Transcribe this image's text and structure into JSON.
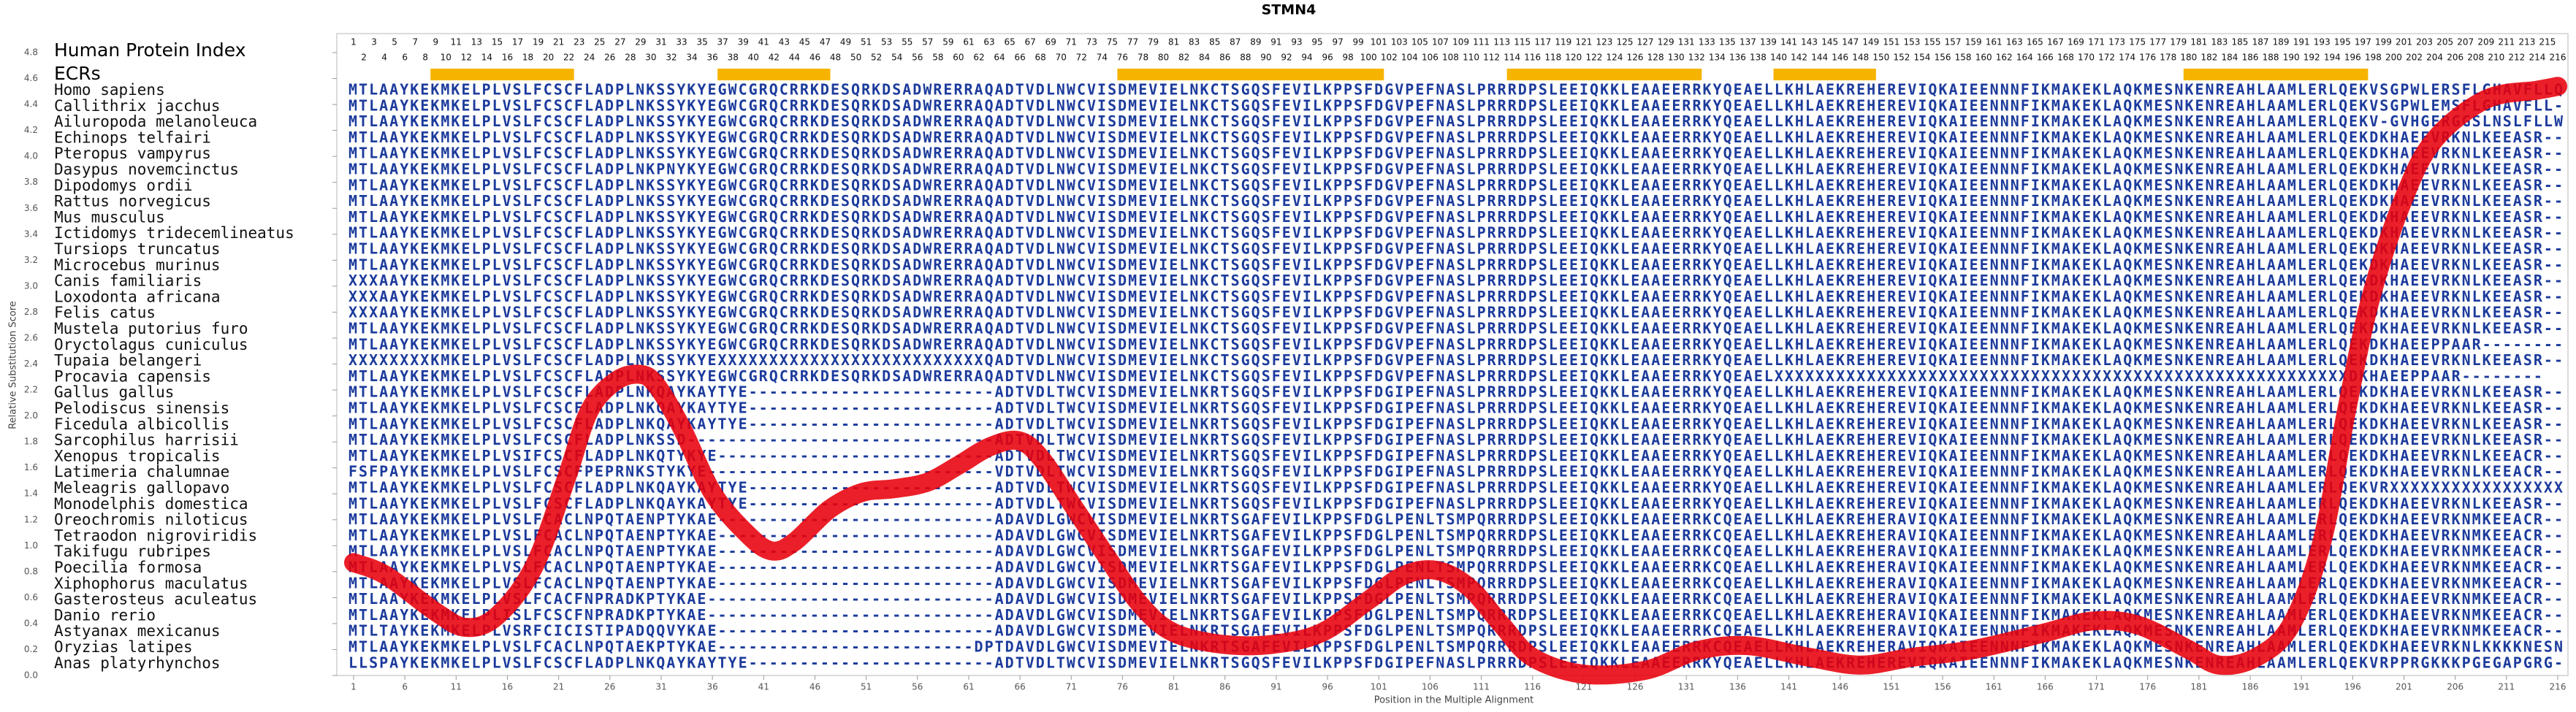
{
  "chart_data": {
    "type": "line",
    "title": "STMN4",
    "xlabel": "Position in the Multiple Alignment",
    "ylabel": "Relative Substitution Score",
    "color": "#e8000b",
    "sequence_color": "#1c3b9c",
    "ecr_color": "#f6b400",
    "xlim": [
      1,
      216
    ],
    "ylim": [
      0,
      4.8
    ],
    "xticks": [
      1,
      6,
      11,
      16,
      21,
      26,
      31,
      36,
      41,
      46,
      51,
      56,
      61,
      66,
      71,
      76,
      81,
      86,
      91,
      96,
      101,
      106,
      111,
      116,
      121,
      126,
      131,
      136,
      141,
      146,
      151,
      156,
      161,
      166,
      171,
      176,
      181,
      186,
      191,
      196,
      201,
      206,
      211,
      216
    ],
    "yticks": [
      {
        "value": 0,
        "label": "0.0"
      },
      0.2,
      0.4,
      0.6,
      0.8,
      {
        "value": 1,
        "label": "1.0"
      },
      1.2,
      1.4,
      1.6,
      1.8,
      {
        "value": 2,
        "label": "2.0"
      },
      2.2,
      2.4,
      2.6,
      2.8,
      {
        "value": 3,
        "label": "3.0"
      },
      3.2,
      3.4,
      3.6,
      3.8,
      {
        "value": 4,
        "label": "4.0"
      },
      4.2,
      4.4,
      4.6,
      4.8
    ],
    "x": [
      1,
      4.2,
      9,
      12,
      15,
      18.6,
      21.8,
      24,
      26.6,
      29,
      30.6,
      33,
      36,
      39.4,
      41.8,
      44,
      47.4,
      50.6,
      53.8,
      57,
      60,
      63,
      65.8,
      68,
      71.4,
      74.6,
      77.8,
      81,
      85.8,
      90.6,
      95.4,
      100,
      103.4,
      106.6,
      109.8,
      113,
      116,
      121,
      127,
      132,
      137,
      143,
      148,
      153,
      159,
      166,
      170.6,
      175,
      180,
      183,
      186.6,
      190,
      193,
      195.4,
      197.8,
      201,
      204,
      209,
      214,
      216
    ],
    "values": [
      0.87,
      0.77,
      0.49,
      0.37,
      0.46,
      0.84,
      1.53,
      2.04,
      2.27,
      2.32,
      2.23,
      1.91,
      1.41,
      1.09,
      0.96,
      1.03,
      1.28,
      1.41,
      1.44,
      1.49,
      1.62,
      1.76,
      1.81,
      1.68,
      1.28,
      0.9,
      0.54,
      0.33,
      0.24,
      0.24,
      0.33,
      0.58,
      0.77,
      0.81,
      0.68,
      0.39,
      0.14,
      0.01,
      0.04,
      0.19,
      0.23,
      0.14,
      0.08,
      0.14,
      0.2,
      0.33,
      0.42,
      0.39,
      0.2,
      0.08,
      0.14,
      0.39,
      1.03,
      2.04,
      2.92,
      3.68,
      4.13,
      4.44,
      4.51,
      4.54
    ],
    "index_label": "Human Protein Index",
    "human_index": [
      1,
      2,
      3,
      4,
      5,
      6,
      7,
      8,
      9,
      10,
      11,
      12,
      13,
      14,
      15,
      16,
      17,
      18,
      19,
      20,
      21,
      22,
      23,
      24,
      25,
      26,
      27,
      28,
      29,
      30,
      31,
      32,
      33,
      34,
      35,
      36,
      37,
      38,
      39,
      40,
      41,
      42,
      43,
      44,
      45,
      46,
      47,
      48,
      49,
      50,
      51,
      52,
      53,
      54,
      55,
      56,
      57,
      58,
      59,
      60,
      61,
      62,
      63,
      64,
      65,
      66,
      67,
      68,
      69,
      70,
      71,
      72,
      73,
      74,
      75,
      76,
      77,
      78,
      79,
      80,
      81,
      82,
      83,
      84,
      85,
      86,
      87,
      88,
      89,
      90,
      91,
      92,
      93,
      94,
      95,
      96,
      97,
      98,
      99,
      100,
      101,
      102,
      103,
      104,
      105,
      106,
      107,
      108,
      109,
      110,
      111,
      112,
      113,
      114,
      115,
      116,
      117,
      118,
      119,
      120,
      121,
      122,
      123,
      124,
      125,
      126,
      127,
      128,
      129,
      130,
      131,
      132,
      133,
      134,
      135,
      136,
      137,
      138,
      139,
      140,
      141,
      142,
      143,
      144,
      145,
      146,
      147,
      148,
      149,
      150,
      151,
      152,
      153,
      154,
      155,
      156,
      157,
      158,
      159,
      160,
      161,
      162,
      163,
      164,
      165,
      166,
      167,
      168,
      169,
      170,
      171,
      172,
      173,
      174,
      175,
      176,
      177,
      178,
      179,
      180,
      181,
      182,
      183,
      184,
      185,
      186,
      187,
      188,
      189,
      190,
      191,
      192,
      193,
      194,
      195,
      196,
      197,
      198,
      199,
      200,
      201,
      202,
      203,
      204,
      205,
      206,
      207,
      208,
      209,
      210,
      211,
      212,
      213,
      214,
      215,
      216
    ],
    "ecr_label": "ECRs",
    "ecrs": [
      [
        9,
        22
      ],
      [
        37,
        47
      ],
      [
        76,
        101
      ],
      [
        114,
        132
      ],
      [
        140,
        149
      ],
      [
        180,
        197
      ]
    ],
    "alignment": [
      {
        "name": "Homo sapiens",
        "sequence": "MTLAAYKEKMKELPLVSLFCSCFLADPLNKSSYKYEGWCGRQCRRKDESQRKDSADWRERRAQADTVDLNWCVISDMEVIELNKCTSGQSFEVILKPPSFDGVPEFNASLPRRRDPSLEEIQKKLEAAEERRKYQEAELLKHLAEKREHEREVIQKAIEENNNFIKMAKEKLAQKMESNKENREAHLAAMLERLQEKVSGPWLERSFLGHAVFLLQ"
      },
      {
        "name": "Callithrix jacchus",
        "sequence": "MTLAAYKEKMKELPLVSLFCSCFLADPLNKSSYKYEGWCGRQCRRKDESQRKDSADWRERRAQADTVDLNWCVISDMEVIELNKCTSGQSFEVILKPPSFDGVPEFNASLPRRRDPSLEEIQKKLEAAEERRKYQEAELLKHLAEKREHEREVIQKAIEENNNFIKMAKEKLAQKMESNKENREAHLAAMLERLQEKVSGPWLEMSFLGHAVFLL-"
      },
      {
        "name": "Ailuropoda melanoleuca",
        "sequence": "MTLAAYKEKMKELPLVSLFCSCFLADPLNKSSYKYEGWCGRQCRRKDESQRKDSADWRERRAQADTVDLNWCVISDMEVIELNKCTSGQSFEVILKPPSFDGVPEFNASLPRRRDPSLEEIQKKLEAAEERRKYQEAELLKHLAEKREHEREVIQKAIEENNNFIKMAKEKLAQKMESNKENREAHLAAMLERLQEKV-GVHGERGGSLNSLFLLW"
      },
      {
        "name": "Echinops telfairi",
        "sequence": "MTLAAYKEKMKELPLVSLFCSCFLADPLNKSSYKYEGWCGRQCRRKDESQRKDSADWRERRAQADTVDLNWCVISDMEVIELNKCTSGQSFEVILKPPSFDGVPEFNASLPRRRDPSLEEIQKKLEAAEERRKYQEAELLKHLAEKREHEREVIQKAIEENNNFIKMAKEKLAQKMESNKENREAHLAAMLERLQEKDKHAEEVRKNLKEEASR--"
      },
      {
        "name": "Pteropus vampyrus",
        "sequence": "MTLAAYKEKMKELPLVSLFCSCFLADPLNKSSYKYEGWCGRQCRRKDESQRKDSADWRERRAQADTVDLNWCVISDMEVIELNKCTSGQSFEVILKPPSFDGVPEFNASLPRRRDPSLEEIQKKLEAAEERRKYQEAELLKHLAEKREHEREVIQKAIEENNNFIKMAKEKLAQKMESNKENREAHLAAMLERLQEKDKHAEEVRKNLKEEASR--"
      },
      {
        "name": "Dasypus novemcinctus",
        "sequence": "MTLAAYKEKMKELPLVSLFCSCFLADPLNKPNYKYEGWCGRQCRRKDESQRKDSADWRERRAQADTVDLNWCVISDMEVIELNKCTSGQSFEVILKPPSFDGVPEFNASLPRRRDPSLEEIQKKLEAAEERRKYQEAELLKHLAEKREHEREVIQKAIEENNNFIKMAKEKLAQKMESNKENREAHLAAMLERLQEKDKHAEEVRKNLKEEASR--"
      },
      {
        "name": "Dipodomys ordii",
        "sequence": "MTLAAYKEKMKELPLVSLFCSCFLADPLNKSSYKYEGWCGRQCRRKDESQRKDSADWRERRAQADTVDLNWCVISDMEVIELNKCTSGQSFEVILKPPSFDGVPEFNASLPRRRDPSLEEIQKKLEAAEERRKYQEAELLKHLAEKREHEREVIQKAIEENNNFIKMAKEKLAQKMESNKENREAHLAAMLERLQEKDKHAEEVRKNLKEEASR--"
      },
      {
        "name": "Rattus norvegicus",
        "sequence": "MTLAAYKEKMKELPLVSLFCSCFLADPLNKSSYKYEGWCGRQCRRKDESQRKDSADWRERRAQADTVDLNWCVISDMEVIELNKCTSGQSFEVILKPPSFDGVPEFNASLPRRRDPSLEEIQKKLEAAEERRKYQEAELLKHLAEKREHEREVIQKAIEENNNFIKMAKEKLAQKMESNKENREAHLAAMLERLQEKDKHAEEVRKNLKEEASR--"
      },
      {
        "name": "Mus musculus",
        "sequence": "MTLAAYKEKMKELPLVSLFCSCFLADPLNKSSYKYEGWCGRQCRRKDESQRKDSADWRERRAQADTVDLNWCVISDMEVIELNKCTSGQSFEVILKPPSFDGVPEFNASLPRRRDPSLEEIQKKLEAAEERRKYQEAELLKHLAEKREHEREVIQKAIEENNNFIKMAKEKLAQKMESNKENREAHLAAMLERLQEKDKHAEEVRKNLKEEASR--"
      },
      {
        "name": "Ictidomys tridecemlineatus",
        "sequence": "MTLAAYKEKMKELPLVSLFCSCFLADPLNKSSYKYEGWCGRQCRRKDESQRKDSADWRERRAQADTVDLNWCVISDMEVIELNKCTSGQSFEVILKPPSFDGVPEFNASLPRRRDPSLEEIQKKLEAAEERRKYQEAELLKHLAEKREHEREVIQKAIEENNNFIKMAKEKLAQKMESNKENREAHLAAMLERLQEKDKHAEEVRKNLKEEASR--"
      },
      {
        "name": "Tursiops truncatus",
        "sequence": "MTLAAYKEKMKELPLVSLFCSCFLADPLNKSSYKYEGWCGRQCRRKDESQRKDSADWRERRAQADTVDLNWCVISDMEVIELNKCTSGQSFEVILKPPSFDGVPEFNASLPRRRDPSLEEIQKKLEAAEERRKYQEAELLKHLAEKREHEREVIQKAIEENNNFIKMAKEKLAQKMESNKENREAHLAAMLERLQEKDKHAEEVRKNLKEEASR--"
      },
      {
        "name": "Microcebus murinus",
        "sequence": "MTLAAYKEKMKELPLVSLFCSCFLADPLNKSSYKYEGWCGRQCRRKDESQRKDSADWRERRAQADTVDLNWCVISDMEVIELNKCTSGQSFEVILKPPSFDGVPEFNASLPRRRDPSLEEIQKKLEAAEERRKYQEAELLKHLAEKREHEREVIQKAIEENNNFIKMAKEKLAQKMESNKENREAHLAAMLERLQEKDKHAEEVRKNLKEEASR--"
      },
      {
        "name": "Canis familiaris",
        "sequence": "XXXAAYKEKMKELPLVSLFCSCFLADPLNKSSYKYEGWCGRQCRRKDESQRKDSADWRERRAQADTVDLNWCVISDMEVIELNKCTSGQSFEVILKPPSFDGVPEFNASLPRRRDPSLEEIQKKLEAAEERRKYQEAELLKHLAEKREHEREVIQKAIEENNNFIKMAKEKLAQKMESNKENREAHLAAMLERLQEKDKHAEEVRKNLKEEASR--"
      },
      {
        "name": "Loxodonta africana",
        "sequence": "XXXAAYKEKMKELPLVSLFCSCFLADPLNKSSYKYEGWCGRQCRRKDESQRKDSADWRERRAQADTVDLNWCVISDMEVIELNKCTSGQSFEVILKPPSFDGVPEFNASLPRRRDPSLEEIQKKLEAAEERRKYQEAELLKHLAEKREHEREVIQKAIEENNNFIKMAKEKLAQKMESNKENREAHLAAMLERLQEKDKHAEEVRKNLKEEASR--"
      },
      {
        "name": "Felis catus",
        "sequence": "XXXAAYKEKMKELPLVSLFCSCFLADPLNKSSYKYEGWCGRQCRRKDESQRKDSADWRERRAQADTVDLNWCVISDMEVIELNKCTSGQSFEVILKPPSFDGVPEFNASLPRRRDPSLEEIQKKLEAAEERRKYQEAELLKHLAEKREHEREVIQKAIEENNNFIKMAKEKLAQKMESNKENREAHLAAMLERLQEKDKHAEEVRKNLKEEASR--"
      },
      {
        "name": "Mustela putorius furo",
        "sequence": "MTLAAYKEKMKELPLVSLFCSCFLADPLNKSSYKYEGWCGRQCRRKDESQRKDSADWRERRAQADTVDLNWCVISDMEVIELNKCTSGQSFEVILKPPSFDGVPEFNASLPRRRDPSLEEIQKKLEAAEERRKYQEAELLKHLAEKREHEREVIQKAIEENNNFIKMAKEKLAQKMESNKENREAHLAAMLERLQEKDKHAEEVRKNLKEEASR--"
      },
      {
        "name": "Oryctolagus cuniculus",
        "sequence": "MTLAAYKEKMKELPLVSLFCSCFLADPLNKSSYKYEGWCGRQCRRKDESQRKDSADWRERRAQADTVDLNWCVISDMEVIELNKCTSGQSFEVILKPPSFDGVPEFNASLPRRRDPSLEEIQKKLEAAEERRKYQEAELLKHLAEKREHEREVIQKAIEENNNFIKMAKEKLAQKMESNKENREAHLAAMLERLQEKDKHAEEPPAAR--------"
      },
      {
        "name": "Tupaia belangeri",
        "sequence": "XXXXXXXXKMKELPLVSLFCSCFLADPLNKSSYKYEXXXXXXXXXXXXXXXXXXXXXXXXXXQADTVDLNWCVISDMEVIELNKCTSGQSFEVILKPPSFDGVPEFNASLPRRRDPSLEEIQKKLEAAEERRKYQEAELLKHLAEKREHEREVIQKAIEENNNFIKMAKEKLAQKMESNKENREAHLAAMLERLQEKDKHAEEVRKNLKEEASR--"
      },
      {
        "name": "Procavia capensis",
        "sequence": "MTLAAYKEKMKELPLVSLFCSCFLADPLNKSSYKYEGWCGRQCRRKDESQRKDSADWRERRAQADTVDLNWCVISDMEVIELNKCTSGQSFEVILKPPSFDGVPEFNASLPRRRDPSLEEIQKKLEAAEERRKYQEAELXXXXXXXXXXXXXXXXXXXXXXXXXXXXXXXXXXXXXXXXXXXXXXXXXXXXXXXXDKHAEEPPAAR--------"
      },
      {
        "name": "Gallus gallus",
        "sequence": "MTLAAYKEKMKELPLVSLFCSCFLADPLNKQAYKAYTYE------------------------ADTVDLTWCVISDMEVIELNKRTSGQSFEVILKPPSFDGIPEFNASLPRRRDPSLEEIQKKLEAAEERRKYQEAELLKHLAEKREHEREVIQKAIEENNNFIKMAKEKLAQKMESNKENREAHLAAMLERLQEKDKHAEEVRKNLKEEASR--"
      },
      {
        "name": "Pelodiscus sinensis",
        "sequence": "MTLAAYKEKMKELPLVSLFCSCFLADPLNKQAYKAYTYE------------------------ADTVDLTWCVISDMEVIELNKRTSGQSFEVILKPPSFDGIPEFNASLPRRRDPSLEEIQKKLEAAEERRKYQEAELLKHLAEKREHEREVIQKAIEENNNFIKMAKEKLAQKMESNKENREAHLAAMLERLQEKDKHAEEVRKNLKEEASR--"
      },
      {
        "name": "Ficedula albicollis",
        "sequence": "MTLAAYKEKMKELPLVSLFCSCFLADPLNKQAYKAYTYE------------------------ADTVDLTWCVISDMEVIELNKRTSGQSFEVILKPPSFDGIPEFNASLPRRRDPSLEEIQKKLEAAEERRKYQEAELLKHLAEKREHEREVIQKAIEENNNFIKMAKEKLAQKMESNKENREAHLAAMLERLQEKDKHAEEVRKNLKEEASR--"
      },
      {
        "name": "Sarcophilus harrisii",
        "sequence": "MTLAAYKEKMKELPLVSLFCSCFLADPLNKSSD------------------------------ADTVDLTWCVISDMEVIELNKRTSGQSFEVILKPPSFDGIPEFNASLPRRRDPSLEEIQKKLEAAEERRKYQEAELLKHLAEKREHEREVIQKAIEENNNFIKMAKEKLAQKMESNKENREAHLAAMLERLQEKDKHAEEVRKNLKEEASR--"
      },
      {
        "name": "Xenopus tropicalis",
        "sequence": "MTLAAYKEKMKELPLVSIFCSCFLADPLNKQTYKYE---------------------------ADTVDLTWCVISDMEVIELNKRTSGQSFEVILKPPSFDGIPEFNASLPRRRDPSLEEIQKKLEAAEERRKYQEAELLKHLAEKREHEREVIQKAIEENNNFIKMAKEKLAQKMESNKENREAHLAAMLERLQEKDKHAEEVRKNLKEEACR--"
      },
      {
        "name": "Latimeria chalumnae",
        "sequence": "FSFPAYKEKMKELPLVSLFCSCFPEPRNKSTYKYE----------------------------VDTVDLTWCVISDMEVIELNKRTSGQSFEVILKPPSFDGIPEFNASLPRRRDPSLEEIQKKLEAAEERRKYQEAELLKHLAEKREHEREVIQKAIEENNNFIKMAKEKLAQKMESNKENREAHLAAMLERLQEKDKHAEEVRKNLKEEACR--"
      },
      {
        "name": "Meleagris gallopavo",
        "sequence": "MTLAAYKEKMKELPLVSLFCSCFLADPLNKQAYKAYTYE------------------------ADTVDLTWCVISDMEVIELNKRTSGQSFEVILKPPSFDGIPEFNASLPRRRDPSLEEIQKKLEAAEERRKYQEAELLKHLAEKREHEREVIQKAIEENNNFIKMAKEKLAQKMESNKENREAHLAAMLERLQEKVRXXXXXXXXXXXXXXXXX"
      },
      {
        "name": "Monodelphis domestica",
        "sequence": "MTLAAYKEKMKELPLVSLFCSCFLADPLNKQAYKAYTYE------------------------ADTVDLTWCVISDMEVIELNKRTSGQSFEVILKPPSFDGIPEFNASLPRRRDPSLEEIQKKLEAAEERRKYQEAELLKHLAEKREHEREVIQKAIEENNNFIKMAKEKLAQKMESNKENREAHLAAMLERLQEKDKHAEEVRKNLKEEASR--"
      },
      {
        "name": "Oreochromis niloticus",
        "sequence": "MTLAAYKEKMKELPLVSLFCACLNPQTAENPTYKAE---------------------------ADAVDLGWCVISDMEVIELNKRTSGAFEVILKPPSFDGLPENLTSMPQRRRDPSLEEIQKKLEAAEERRKCQEAELLKHLAEKREHERAVIQKAIEENNNFIKMAKEKLAQKMESNKENREAHLAAMLERLQEKDKHAEEVRKNMKEEACR--"
      },
      {
        "name": "Tetraodon nigroviridis",
        "sequence": "MTLAAYKEKMKELPLVSLFCACLNPQTAENPTYKAE---------------------------ADAVDLGWCVISDMEVIELNKRTSGAFEVILKPPSFDGLPENLTSMPQRRRDPSLEEIQKKLEAAEERRKCQEAELLKHLAEKREHERAVIQKAIEENNNFIKMAKEKLAQKMESNKENREAHLAAMLERLQEKDKHAEEVRKNMKEEACR--"
      },
      {
        "name": "Takifugu rubripes",
        "sequence": "MTLAAYKEKMKELPLVSLFCACLNPQTAENPTYKAE---------------------------ADAVDLGWCVISDMEVIELNKRTSGAFEVILKPPSFDGLPENLTSMPQRRRDPSLEEIQKKLEAAEERRKCQEAELLKHLAEKREHERAVIQKAIEENNNFIKMAKEKLAQKMESNKENREAHLAAMLERLQEKDKHAEEVRKNMKEEACR--"
      },
      {
        "name": "Poecilia formosa",
        "sequence": "MTLAAYKEKMKELPLVSLFCACLNPQTAENPTYKAE---------------------------ADAVDLGWCVISDMEVIELNKRTSGAFEVILKPPSFDGLPENLTSMPQRRRDPSLEEIQKKLEAAEERRKCQEAELLKHLAEKREHERAVIQKAIEENNNFIKMAKEKLAQKMESNKENREAHLAAMLERLQEKDKHAEEVRKNMKEEACR--"
      },
      {
        "name": "Xiphophorus maculatus",
        "sequence": "MTLAAYKEKMKELPLVSLFCACLNPQTAENPTYKAE---------------------------ADAVDLGWCVISDMEVIELNKRTSGAFEVILKPPSFDGLPENLTSMPQRRRDPSLEEIQKKLEAAEERRKCQEAELLKHLAEKREHERAVIQKAIEENNNFIKMAKEKLAQKMESNKENREAHLAAMLERLQEKDKHAEEVRKNMKEEACR--"
      },
      {
        "name": "Gasterosteus aculeatus",
        "sequence": "MTLAAYKEKMKELPLVSLFCACFNPRADKPTYKAE----------------------------ADAVDLGWCVISDMEVIELNKRTSGAFEVILKPPSFDGLPENLTSMPQRRRDPSLEEIQKKLEAAEERRKCQEAELLKHLAEKREHERAVIQKAIEENNNFIKMAKEKLAQKMESNKENREAHLAAMLERLQEKDKHAEEVRKNMKEEACR--"
      },
      {
        "name": "Danio rerio",
        "sequence": "MTLAAYKEKMKELPLISLFCSCFNPRADKPTYKAE----------------------------ADAVDLGWCVISDMEVIELNKRTSGAFEVILKPPSFDGLPENLTSMPQRRRDPSLEEIQKKLEAAEERRKCQEAELLKHLAEKREHERAVIQKAIEENNNFIKMAKEKLAQKMESNKENREAHLAAMLERLQEKDKHAEEVRKNMKEEACR--"
      },
      {
        "name": "Astyanax mexicanus",
        "sequence": "MTLTAYKEKMKELPLVSRFCICISTIPADQQVYKAE---------------------------ADAVDLGWCVISDMEVIELNKRTSGAFEVILKPPSFDGLPENLTSMPQRRRDPSLEEIQKKLEAAEERRKCQEAELLKHLAEKREHERAVIQKAIEENNNFIKMAKEKLAQKMESNKENREAHLAAMLERLQEKDKHAEEVRKNMKEEACR--"
      },
      {
        "name": "Oryzias latipes",
        "sequence": "MTLAAYKEKMKELPLVSLFCACLNPQTAEKPTYKAE-------------------------DPTDAVDLGWCVISDMEVIELNKRTSGAFEVILKPPSFDGLPENLTSMPQRRRDPSLEEIQKKLEAAEERRKCQEAELLKHLAEKREHERAVIQKAIEENNNFIKMAKEKLAQKMESNKENREAHLAAMLERLQEKDKHAEEVRKNLKKKKNESN"
      },
      {
        "name": "Anas platyrhynchos",
        "sequence": "LLSPAYKEKMKELPLVSLFCSCFLADPLNKQAYKAYTYE------------------------ADTVDLTWCVISDMEVIELNKRTSGQSFEVILKPPSFDGIPEFNASLPRRRDPSLEEIQKKLEAAEERRKYQEAELLKHLAEKREHEREVIQKAIEENNNFIKMAKEKLAQKMESNKENREAHLAAMLERLQEKVRPPRGKKKPGEGAPGRG-"
      }
    ]
  }
}
